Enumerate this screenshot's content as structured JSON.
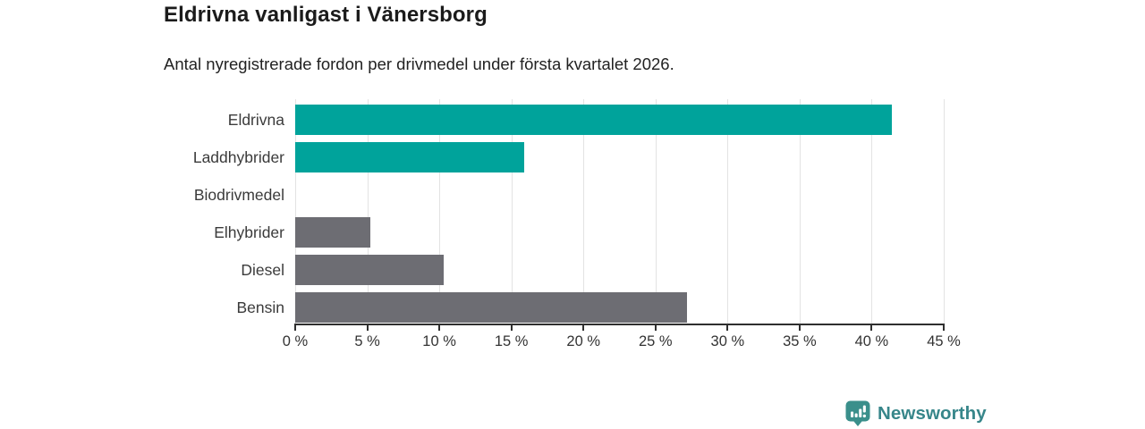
{
  "chart_data": {
    "type": "bar",
    "orientation": "horizontal",
    "title": "Eldrivna vanligast i Vänersborg",
    "subtitle": "Antal nyregistrerade fordon per drivmedel under första kvartalet 2026.",
    "categories": [
      "Eldrivna",
      "Laddhybrider",
      "Biodrivmedel",
      "Elhybrider",
      "Diesel",
      "Bensin"
    ],
    "values": [
      41.4,
      15.9,
      0,
      5.2,
      10.3,
      27.2
    ],
    "unit": "%",
    "xlim": [
      0,
      45
    ],
    "x_tick_step": 5,
    "x_tick_labels": [
      "0 %",
      "5 %",
      "10 %",
      "15 %",
      "20 %",
      "25 %",
      "30 %",
      "35 %",
      "40 %",
      "45 %"
    ],
    "grid": true,
    "legend": "none",
    "bar_colors": [
      "#00a39b",
      "#00a39b",
      "#6d6d73",
      "#6d6d73",
      "#6d6d73",
      "#6d6d73"
    ],
    "highlight_color": "#00a39b",
    "default_color": "#6d6d73"
  },
  "branding": {
    "logo_text": "Newsworthy",
    "logo_color": "#3a8f8b",
    "logo_text_color": "#37868a",
    "logo_icon": "bar-chart-speech-bubble-icon"
  }
}
